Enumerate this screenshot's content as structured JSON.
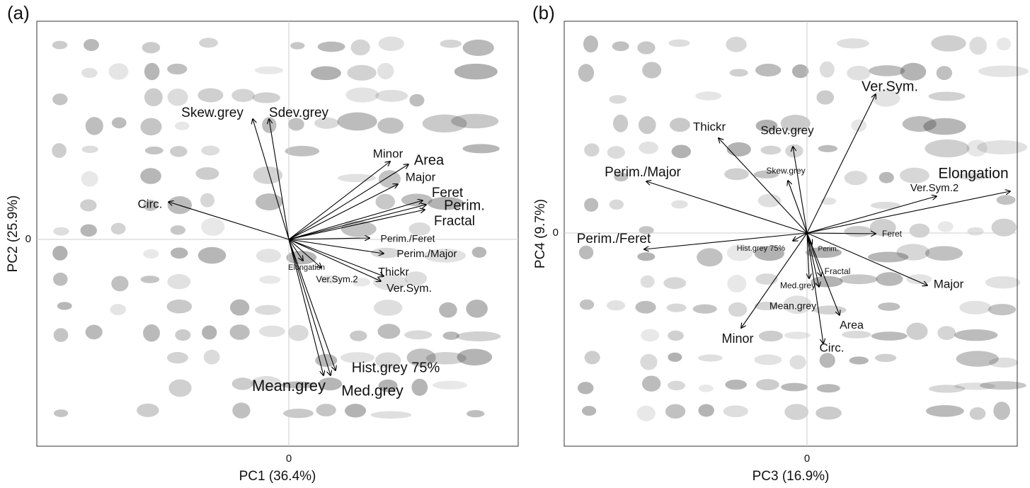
{
  "chart_data": [
    {
      "type": "biplot",
      "panel_label": "(a)",
      "x_label": "PC1 (36.4%)",
      "y_label": "PC2 (25.9%)",
      "xlim": [
        -3.56,
        3.24
      ],
      "ylim": [
        -2.92,
        3.08
      ],
      "xticks": [
        0
      ],
      "yticks": [
        0
      ],
      "grid": true,
      "color": "#000000",
      "labels": [
        "Skew.grey",
        "Sdev.grey",
        "Circ.",
        "Minor",
        "Area",
        "Major",
        "Feret",
        "Perim.",
        "Fractal",
        "Perim./Feret",
        "Perim./Major",
        "Elongation",
        "Ver.Sym.2",
        "Thickr",
        "Ver.Sym.",
        "Hist.grey 75%",
        "Mean.grey",
        "Med.grey"
      ],
      "x": [
        -0.51,
        -0.28,
        -1.7,
        1.43,
        1.69,
        1.54,
        1.89,
        1.94,
        1.92,
        1.14,
        1.34,
        0.2,
        0.46,
        1.34,
        1.3,
        0.66,
        0.49,
        0.59
      ],
      "y": [
        1.7,
        1.7,
        0.53,
        1.1,
        1.06,
        0.78,
        0.55,
        0.49,
        0.42,
        0.02,
        -0.2,
        -0.3,
        -0.4,
        -0.52,
        -0.59,
        -1.85,
        -1.92,
        -1.92
      ]
    },
    {
      "type": "biplot",
      "panel_label": "(b)",
      "x_label": "PC3 (16.9%)",
      "y_label": "PC4 (9.7%)",
      "xlim": [
        -3.43,
        2.97
      ],
      "ylim": [
        -3.01,
        2.99
      ],
      "xticks": [
        0
      ],
      "yticks": [
        0
      ],
      "grid": true,
      "color": "#000000",
      "labels": [
        "Ver.Sym.",
        "Thickr",
        "Sdev.grey",
        "Skew.grey",
        "Perim./Major",
        "Elongation",
        "Ver.Sym.2",
        "Feret",
        "Perim./Feret",
        "Hist.grey 75%",
        "Perim.",
        "Fractal",
        "Med.grey",
        "Mean.grey",
        "Major",
        "Area",
        "Circ.",
        "Minor"
      ],
      "x": [
        0.97,
        -1.25,
        -0.2,
        -0.27,
        -2.27,
        2.87,
        1.83,
        0.97,
        -2.3,
        -0.2,
        0.07,
        0.2,
        0.03,
        0.17,
        1.7,
        0.46,
        0.23,
        -0.93
      ],
      "y": [
        1.96,
        1.34,
        1.22,
        0.74,
        0.73,
        0.59,
        0.52,
        -0.01,
        -0.23,
        -0.11,
        -0.16,
        -0.61,
        -0.64,
        -0.76,
        -0.74,
        -1.16,
        -1.56,
        -1.34
      ]
    }
  ]
}
